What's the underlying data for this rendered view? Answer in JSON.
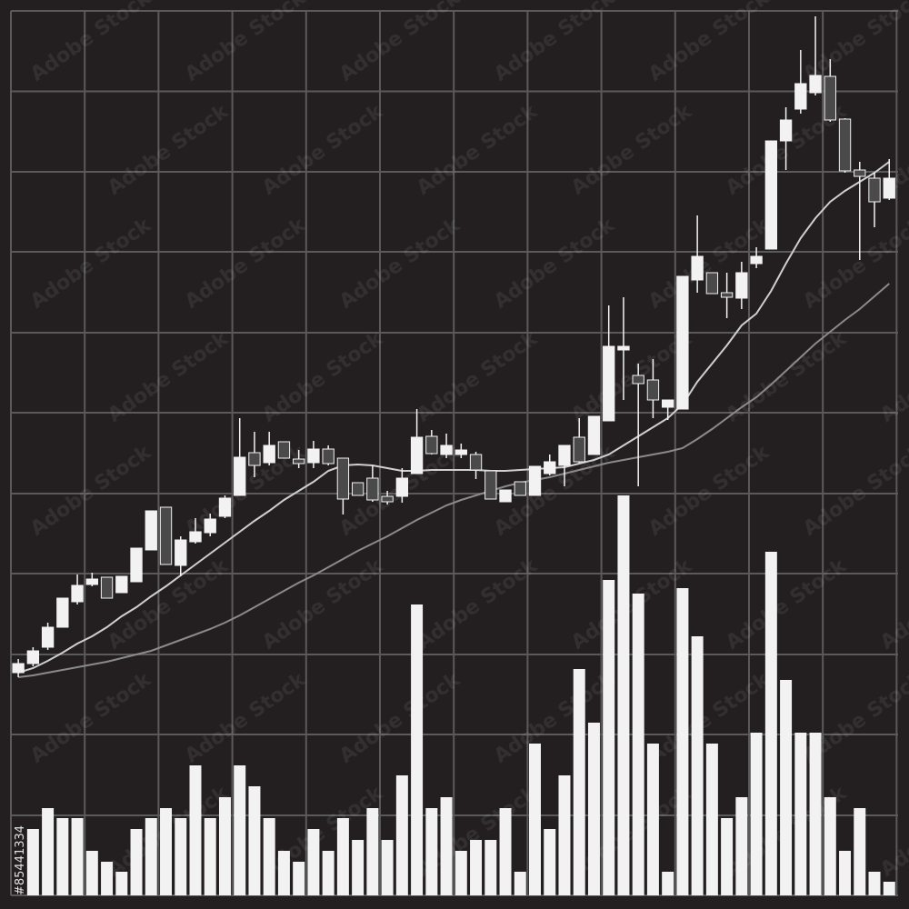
{
  "chart_data": {
    "type": "candlestick",
    "watermark": "Adobe Stock",
    "image_id": "#85441334",
    "background": "#231f20",
    "grid": true,
    "grid_color": "#5a5a5a",
    "up_color": "#f2f2f2",
    "down_color": "#4a4a4a",
    "x": [
      0,
      1,
      2,
      3,
      4,
      5,
      6,
      7,
      8,
      9,
      10,
      11,
      12,
      13,
      14,
      15,
      16,
      17,
      18,
      19,
      20,
      21,
      22,
      23,
      24,
      25,
      26,
      27,
      28,
      29,
      30,
      31,
      32,
      33,
      34,
      35,
      36,
      37,
      38,
      39,
      40,
      41,
      42,
      43,
      44,
      45,
      46,
      47,
      48,
      49,
      50,
      51,
      52,
      53,
      54,
      55,
      56,
      57,
      58,
      59
    ],
    "xlim": [
      -0.5,
      59.6
    ],
    "xticks": [
      -0.5,
      4.5,
      9.5,
      14.5,
      19.5,
      24.5,
      29.5,
      34.5,
      39.5,
      44.5,
      49.5,
      54.5,
      59.5
    ],
    "ylim": [
      15,
      988
    ],
    "yticks": [
      15,
      103,
      192,
      280,
      369,
      457,
      546,
      634,
      723,
      811,
      899.5,
      988
    ],
    "open": [
      260,
      270,
      288,
      310,
      338,
      357,
      365,
      348,
      360,
      395,
      442,
      378,
      404,
      414,
      432,
      455,
      502,
      491,
      514,
      495,
      491,
      506,
      496,
      469,
      474,
      454,
      454,
      479,
      520,
      500,
      500,
      500,
      482,
      448,
      470,
      455,
      479,
      488,
      519,
      500,
      537,
      615,
      587,
      582,
      552,
      550,
      692,
      700,
      678,
      672,
      710,
      726,
      845,
      880,
      898,
      916,
      869,
      813,
      804,
      782
    ],
    "high": [
      275,
      288,
      315,
      342,
      368,
      370,
      365,
      366,
      397,
      438,
      442,
      410,
      430,
      435,
      455,
      540,
      525,
      525,
      514,
      505,
      515,
      510,
      496,
      469,
      488,
      460,
      485,
      550,
      527,
      523,
      512,
      503,
      482,
      461,
      470,
      487,
      500,
      510,
      540,
      542,
      664,
      673,
      600,
      605,
      560,
      696,
      763,
      700,
      700,
      712,
      728,
      845,
      882,
      945,
      982,
      935,
      870,
      822,
      810,
      825
    ],
    "low": [
      255,
      267,
      285,
      310,
      335,
      355,
      342,
      348,
      360,
      395,
      379,
      366,
      402,
      410,
      430,
      455,
      475,
      488,
      496,
      485,
      485,
      488,
      434,
      455,
      448,
      445,
      447,
      479,
      500,
      496,
      496,
      473,
      451,
      448,
      455,
      455,
      477,
      465,
      491,
      500,
      537,
      560,
      465,
      540,
      538,
      550,
      678,
      677,
      650,
      660,
      705,
      726,
      813,
      875,
      895,
      866,
      810,
      714,
      750,
      780
    ],
    "close": [
      270,
      284,
      310,
      342,
      356,
      363,
      342,
      366,
      397,
      438,
      379,
      406,
      415,
      429,
      452,
      497,
      488,
      510,
      496,
      490,
      506,
      490,
      451,
      455,
      450,
      448,
      474,
      519,
      501,
      510,
      505,
      483,
      451,
      461,
      455,
      487,
      492,
      510,
      492,
      542,
      619,
      619,
      578,
      560,
      560,
      696,
      718,
      677,
      673,
      700,
      718,
      845,
      868,
      908,
      917,
      868,
      812,
      806,
      778,
      804
    ],
    "moving_averages": [
      {
        "color": "#cfcfcf",
        "values": [
          260,
          265,
          273,
          282,
          292,
          300,
          310,
          322,
          332,
          344,
          355,
          367,
          379,
          391,
          403,
          415,
          427,
          438,
          450,
          460,
          470,
          482,
          488,
          489,
          488,
          485,
          482,
          482,
          483,
          483,
          483,
          483,
          482,
          482,
          483,
          484,
          485,
          486,
          490,
          494,
          500,
          510,
          520,
          530,
          540,
          555,
          580,
          600,
          620,
          642,
          655,
          680,
          710,
          738,
          760,
          778,
          790,
          800,
          810,
          822
        ]
      },
      {
        "color": "#8a8a8a",
        "values": [
          255,
          257,
          260,
          263,
          266,
          269,
          272,
          276,
          280,
          284,
          290,
          296,
          302,
          308,
          315,
          323,
          332,
          341,
          350,
          359,
          367,
          376,
          385,
          394,
          402,
          410,
          419,
          428,
          436,
          444,
          450,
          455,
          460,
          465,
          469,
          472,
          475,
          479,
          483,
          487,
          491,
          494,
          497,
          500,
          503,
          507,
          517,
          528,
          540,
          552,
          563,
          577,
          592,
          607,
          622,
          635,
          648,
          660,
          674,
          688
        ]
      }
    ],
    "volume": {
      "axis": "y2",
      "color": "#f2f2f2",
      "values": [
        null,
        73,
        96,
        85,
        85,
        49,
        37,
        26,
        73,
        85,
        96,
        85,
        143,
        85,
        108,
        143,
        120,
        85,
        49,
        37,
        73,
        49,
        85,
        61,
        96,
        61,
        132,
        320,
        96,
        108,
        49,
        61,
        61,
        96,
        26,
        167,
        73,
        132,
        249,
        190,
        347,
        440,
        332,
        167,
        26,
        338,
        285,
        167,
        85,
        108,
        179,
        378,
        237,
        179,
        179,
        108,
        49,
        96,
        26,
        15
      ]
    },
    "y2lim": [
      0,
      973
    ]
  }
}
